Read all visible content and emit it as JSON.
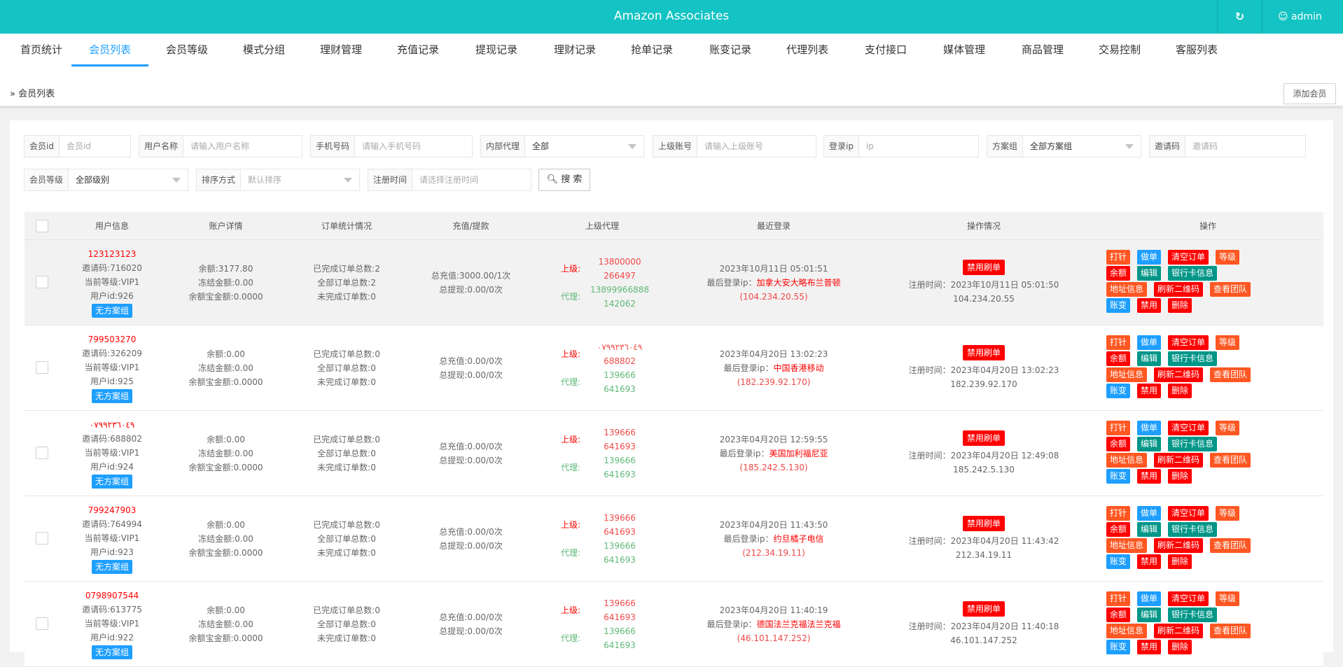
{
  "header": {
    "title": "Amazon Associates",
    "refresh_icon": "refresh-icon",
    "user": "admin",
    "user_icon": "user-icon"
  },
  "nav": {
    "active": 1,
    "tabs": [
      "首页统计",
      "会员列表",
      "会员等级",
      "模式分组",
      "理财管理",
      "充值记录",
      "提现记录",
      "理财记录",
      "抢单记录",
      "账变记录",
      "代理列表",
      "支付接口",
      "媒体管理",
      "商品管理",
      "交易控制",
      "客服列表"
    ]
  },
  "breadcrumb": "会员列表",
  "add_button": "添加会员",
  "filters": {
    "member_id": {
      "label": "会员id",
      "placeholder": "会员id"
    },
    "username": {
      "label": "用户名称",
      "placeholder": "请输入用户名称"
    },
    "phone": {
      "label": "手机号码",
      "placeholder": "请输入手机号码"
    },
    "internal_agent": {
      "label": "内部代理",
      "value": "全部"
    },
    "parent_account": {
      "label": "上级账号",
      "placeholder": "请输入上级账号"
    },
    "login_ip": {
      "label": "登录ip",
      "placeholder": "ip"
    },
    "plan_group": {
      "label": "方案组",
      "value": "全部方案组"
    },
    "invite_code": {
      "label": "邀请码",
      "placeholder": "邀请码"
    },
    "member_level": {
      "label": "会员等级",
      "value": "全部级别"
    },
    "sort": {
      "label": "排序方式",
      "value": "默认排序"
    },
    "reg_time": {
      "label": "注册时间",
      "placeholder": "请选择注册时间"
    },
    "search_button": "搜 索"
  },
  "table": {
    "columns": [
      "用户信息",
      "账户详情",
      "订单统计情况",
      "充值/提款",
      "上级代理",
      "最近登录",
      "操作情况",
      "操作"
    ],
    "labels": {
      "parent": "上级:",
      "agent": "代理:",
      "ban": "禁用刷单",
      "reg_prefix": "注册时间：",
      "last_ip_prefix": "最后登录ip："
    },
    "actions": [
      [
        {
          "t": "打针",
          "c": "orange"
        },
        {
          "t": "做单",
          "c": "blue"
        },
        {
          "t": "清空订单",
          "c": "rd"
        },
        {
          "t": "等级",
          "c": "orange"
        }
      ],
      [
        {
          "t": "余额",
          "c": "rd"
        },
        {
          "t": "编辑",
          "c": "teal"
        },
        {
          "t": "银行卡信息",
          "c": "teal"
        }
      ],
      [
        {
          "t": "地址信息",
          "c": "orange"
        },
        {
          "t": "刷新二维码",
          "c": "rd"
        },
        {
          "t": "查看团队",
          "c": "orange"
        }
      ],
      [
        {
          "t": "账变",
          "c": "blue"
        },
        {
          "t": "禁用",
          "c": "rd"
        },
        {
          "t": "删除",
          "c": "rd"
        }
      ]
    ],
    "rows": [
      {
        "phone": "123123123",
        "invite": "邀请码:716020",
        "level": "当前等级:VIP1",
        "uid": "用户id:926",
        "plan": "无方案组",
        "balance": "余额:3177.80",
        "frozen": "冻结金额:0.00",
        "yeb": "余额宝金额:0.0000",
        "done": "已完成订单总数:2",
        "all": "全部订单总数:2",
        "undone": "未完成订单数:0",
        "recharge": "总充值:3000.00/1次",
        "withdraw": "总提现:0.00/0次",
        "parent": [
          "13800000",
          "266497"
        ],
        "agent": [
          "13899966888",
          "142062"
        ],
        "login_time": "2023年10月11日 05:01:51",
        "login_loc": "加拿大安大略布兰普顿",
        "login_ip": "(104.234.20.55)",
        "reg_time": "2023年10月11日 05:01:50",
        "reg_ip": "104.234.20.55"
      },
      {
        "phone": "799503270",
        "invite": "邀请码:326209",
        "level": "当前等级:VIP1",
        "uid": "用户id:925",
        "plan": "无方案组",
        "balance": "余额:0.00",
        "frozen": "冻结金额:0.00",
        "yeb": "余额宝金额:0.0000",
        "done": "已完成订单总数:0",
        "all": "全部订单总数:0",
        "undone": "未完成订单数:0",
        "recharge": "总充值:0.00/0次",
        "withdraw": "总提现:0.00/0次",
        "parent": [
          "٠٧٩٩٢٣٦٠٤٩",
          "688802"
        ],
        "agent": [
          "139666",
          "641693"
        ],
        "login_time": "2023年04月20日 13:02:23",
        "login_loc": "中国香港移动",
        "login_ip": "(182.239.92.170)",
        "reg_time": "2023年04月20日 13:02:23",
        "reg_ip": "182.239.92.170"
      },
      {
        "phone": "٠٧٩٩٢٣٦٠٤٩",
        "invite": "邀请码:688802",
        "level": "当前等级:VIP1",
        "uid": "用户id:924",
        "plan": "无方案组",
        "balance": "余额:0.00",
        "frozen": "冻结金额:0.00",
        "yeb": "余额宝金额:0.0000",
        "done": "已完成订单总数:0",
        "all": "全部订单总数:0",
        "undone": "未完成订单数:0",
        "recharge": "总充值:0.00/0次",
        "withdraw": "总提现:0.00/0次",
        "parent": [
          "139666",
          "641693"
        ],
        "agent": [
          "139666",
          "641693"
        ],
        "login_time": "2023年04月20日 12:59:55",
        "login_loc": "美国加利福尼亚",
        "login_ip": "(185.242.5.130)",
        "reg_time": "2023年04月20日 12:49:08",
        "reg_ip": "185.242.5.130"
      },
      {
        "phone": "799247903",
        "invite": "邀请码:764994",
        "level": "当前等级:VIP1",
        "uid": "用户id:923",
        "plan": "无方案组",
        "balance": "余额:0.00",
        "frozen": "冻结金额:0.00",
        "yeb": "余额宝金额:0.0000",
        "done": "已完成订单总数:0",
        "all": "全部订单总数:0",
        "undone": "未完成订单数:0",
        "recharge": "总充值:0.00/0次",
        "withdraw": "总提现:0.00/0次",
        "parent": [
          "139666",
          "641693"
        ],
        "agent": [
          "139666",
          "641693"
        ],
        "login_time": "2023年04月20日 11:43:50",
        "login_loc": "约旦橘子电信",
        "login_ip": "(212.34.19.11)",
        "reg_time": "2023年04月20日 11:43:42",
        "reg_ip": "212.34.19.11"
      },
      {
        "phone": "0798907544",
        "invite": "邀请码:613775",
        "level": "当前等级:VIP1",
        "uid": "用户id:922",
        "plan": "无方案组",
        "balance": "余额:0.00",
        "frozen": "冻结金额:0.00",
        "yeb": "余额宝金额:0.0000",
        "done": "已完成订单总数:0",
        "all": "全部订单总数:0",
        "undone": "未完成订单数:0",
        "recharge": "总充值:0.00/0次",
        "withdraw": "总提现:0.00/0次",
        "parent": [
          "139666",
          "641693"
        ],
        "agent": [
          "139666",
          "641693"
        ],
        "login_time": "2023年04月20日 11:40:19",
        "login_loc": "德国法兰克福法兰克福",
        "login_ip": "(46.101.147.252)",
        "reg_time": "2023年04月20日 11:40:18",
        "reg_ip": "46.101.147.252"
      }
    ]
  }
}
